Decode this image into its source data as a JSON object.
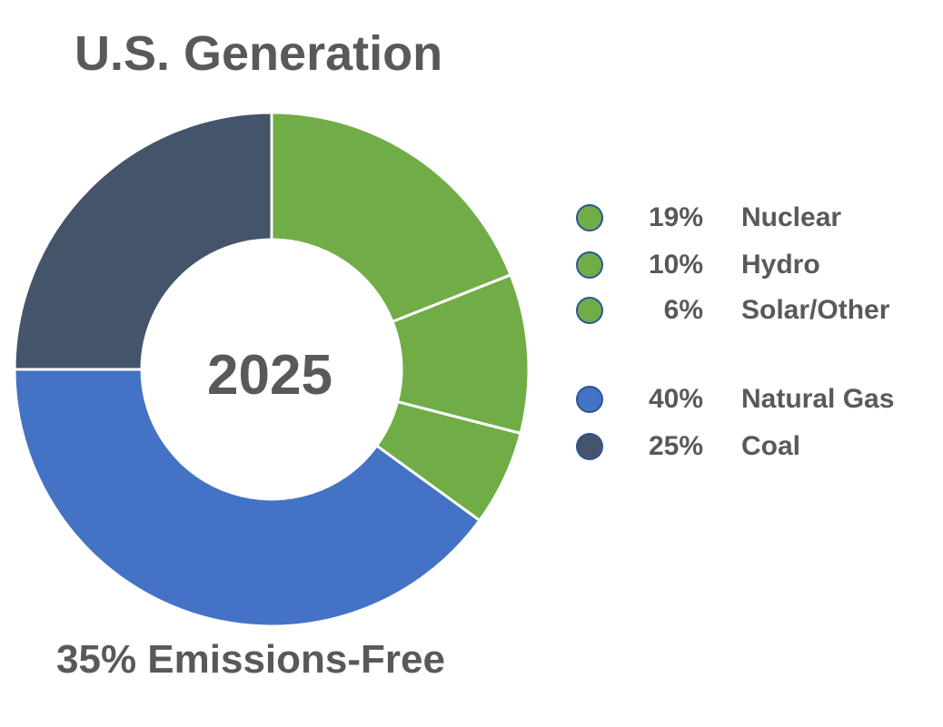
{
  "chart_data": {
    "type": "pie",
    "variant": "donut",
    "title": "U.S. Generation",
    "center_label": "2025",
    "footer": "35% Emissions-Free",
    "slices": [
      {
        "label": "Nuclear",
        "value": 19,
        "pct_label": "19%",
        "color": "#70AD47"
      },
      {
        "label": "Hydro",
        "value": 10,
        "pct_label": "10%",
        "color": "#70AD47"
      },
      {
        "label": "Solar/Other",
        "value": 6,
        "pct_label": "6%",
        "color": "#70AD47"
      },
      {
        "label": "Natural Gas",
        "value": 40,
        "pct_label": "40%",
        "color": "#4472C4"
      },
      {
        "label": "Coal",
        "value": 25,
        "pct_label": "25%",
        "color": "#44546A"
      }
    ],
    "legend_position": "right"
  }
}
